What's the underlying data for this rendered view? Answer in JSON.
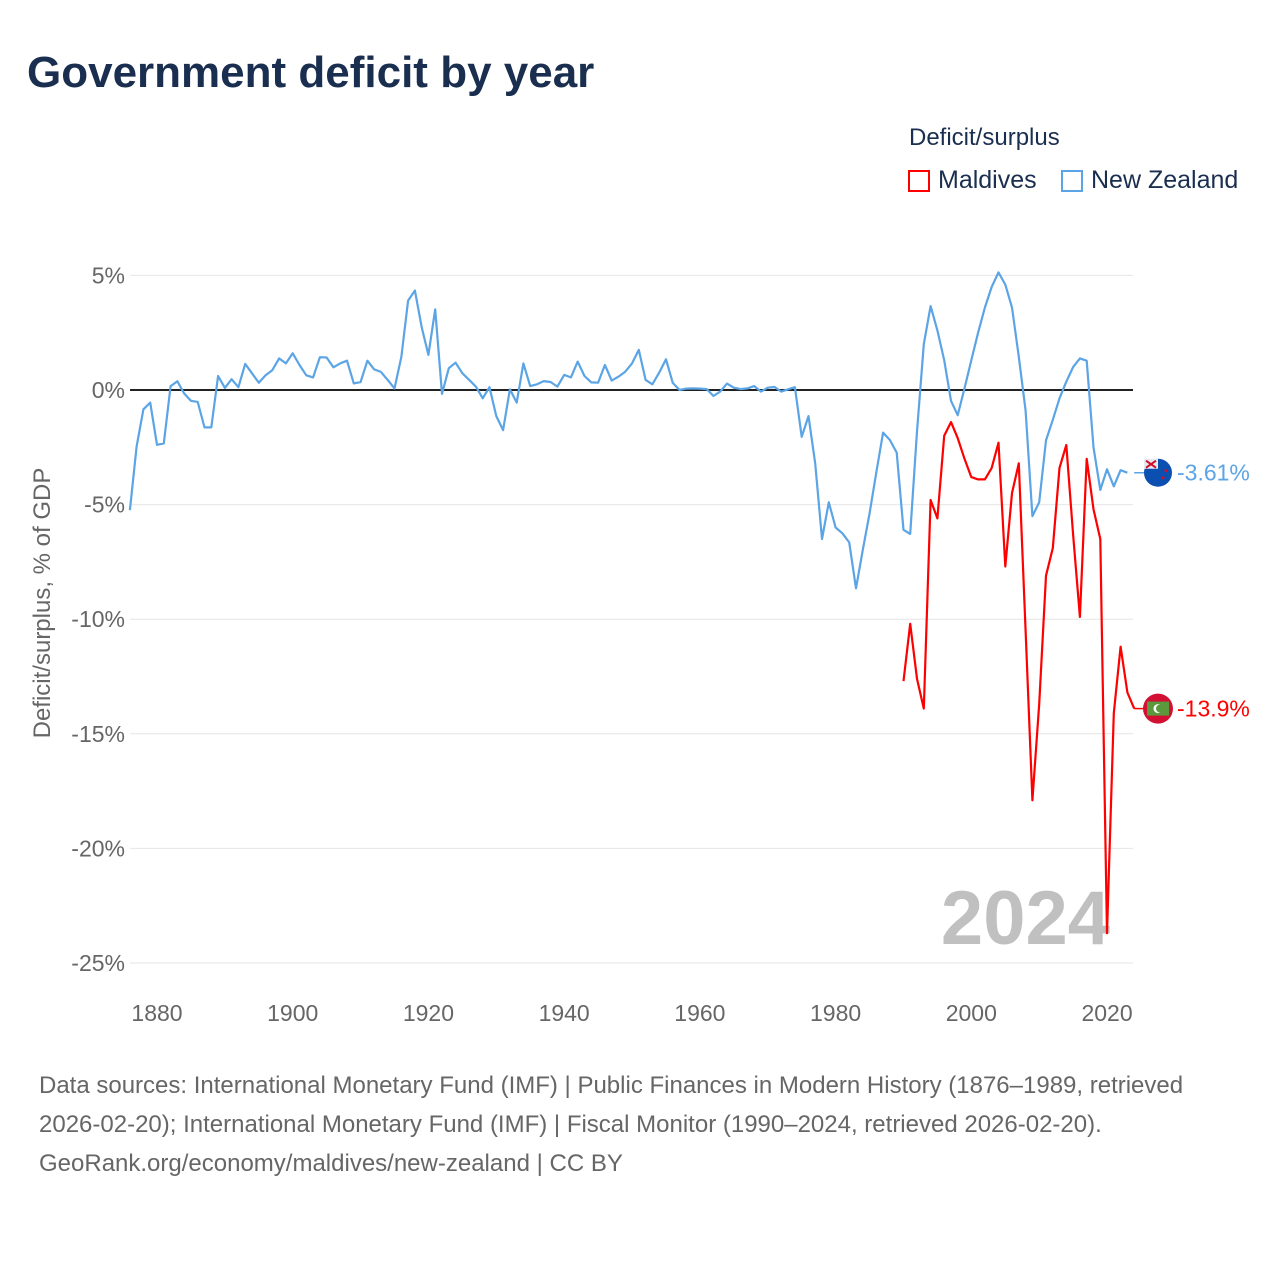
{
  "chart_data": {
    "type": "line",
    "title": "Government deficit by year",
    "ylabel": "Deficit/surplus, % of GDP",
    "xlabel": "",
    "xlim": [
      1876,
      2024
    ],
    "ylim": [
      -25,
      5
    ],
    "yticks": [
      5,
      0,
      -5,
      -10,
      -15,
      -20,
      -25
    ],
    "ytick_labels": [
      "5%",
      "0%",
      "-5%",
      "-10%",
      "-15%",
      "-20%",
      "-25%"
    ],
    "xticks": [
      1880,
      1900,
      1920,
      1940,
      1960,
      1980,
      2000,
      2020
    ],
    "xtick_labels": [
      "1880",
      "1900",
      "1920",
      "1940",
      "1960",
      "1980",
      "2000",
      "2020"
    ],
    "legend_title": "Deficit/surplus",
    "legend_position": "top-right",
    "year_label": "2024",
    "series": [
      {
        "name": "Maldives",
        "color": "#ff0000",
        "end_label": "-13.9%",
        "start_year": 1990,
        "values": [
          -12.7,
          -10.2,
          -12.6,
          -13.9,
          -4.8,
          -5.6,
          -2.0,
          -1.4,
          -2.1,
          -3.0,
          -3.8,
          -3.9,
          -3.9,
          -3.4,
          -2.3,
          -7.7,
          -4.5,
          -3.2,
          -10.5,
          -17.9,
          -13.7,
          -8.1,
          -6.9,
          -3.4,
          -2.4,
          -6.3,
          -9.9,
          -3.0,
          -5.2,
          -6.5,
          -23.7,
          -14.1,
          -11.2,
          -13.2,
          -13.9
        ]
      },
      {
        "name": "New Zealand",
        "color": "#5ba4e5",
        "end_label": "-3.61%",
        "start_year": 1876,
        "values": [
          -5.24,
          -2.47,
          -0.84,
          -0.55,
          -2.39,
          -2.33,
          0.17,
          0.38,
          -0.15,
          -0.47,
          -0.52,
          -1.63,
          -1.63,
          0.61,
          0.09,
          0.47,
          0.12,
          1.14,
          0.73,
          0.32,
          0.64,
          0.87,
          1.38,
          1.16,
          1.6,
          1.09,
          0.64,
          0.55,
          1.43,
          1.42,
          0.99,
          1.16,
          1.28,
          0.29,
          0.35,
          1.28,
          0.9,
          0.79,
          0.44,
          0.07,
          1.43,
          3.9,
          4.34,
          2.74,
          1.53,
          3.52,
          -0.17,
          0.95,
          1.19,
          0.73,
          0.44,
          0.15,
          -0.36,
          0.12,
          -1.14,
          -1.75,
          0.03,
          -0.55,
          1.16,
          0.17,
          0.25,
          0.39,
          0.35,
          0.15,
          0.66,
          0.55,
          1.24,
          0.61,
          0.33,
          0.32,
          1.09,
          0.41,
          0.58,
          0.8,
          1.16,
          1.75,
          0.44,
          0.25,
          0.76,
          1.34,
          0.32,
          0.0,
          0.06,
          0.07,
          0.06,
          0.04,
          -0.26,
          -0.07,
          0.28,
          0.1,
          0.04,
          0.07,
          0.17,
          -0.07,
          0.1,
          0.13,
          -0.07,
          0.03,
          0.12,
          -2.04,
          -1.14,
          -3.2,
          -6.5,
          -4.9,
          -6.0,
          -6.25,
          -6.65,
          -8.65,
          -7.0,
          -5.4,
          -3.6,
          -1.86,
          -2.18,
          -2.73,
          -6.1,
          -6.28,
          -1.8,
          2.0,
          3.66,
          2.6,
          1.3,
          -0.47,
          -1.1,
          0.07,
          1.3,
          2.5,
          3.6,
          4.5,
          5.13,
          4.6,
          3.6,
          1.45,
          -0.9,
          -5.5,
          -4.9,
          -2.2,
          -1.3,
          -0.36,
          0.36,
          1.0,
          1.38,
          1.28,
          -2.5,
          -4.36,
          -3.46,
          -4.2,
          -3.5,
          -3.61
        ]
      }
    ]
  },
  "footer": {
    "sources": "Data sources: International Monetary Fund (IMF) | Public Finances in Modern History (1876–1989, retrieved 2026-02-20); International Monetary Fund (IMF) | Fiscal Monitor (1990–2024, retrieved 2026-02-20).",
    "credit": "GeoRank.org/economy/maldives/new-zealand | CC BY"
  }
}
